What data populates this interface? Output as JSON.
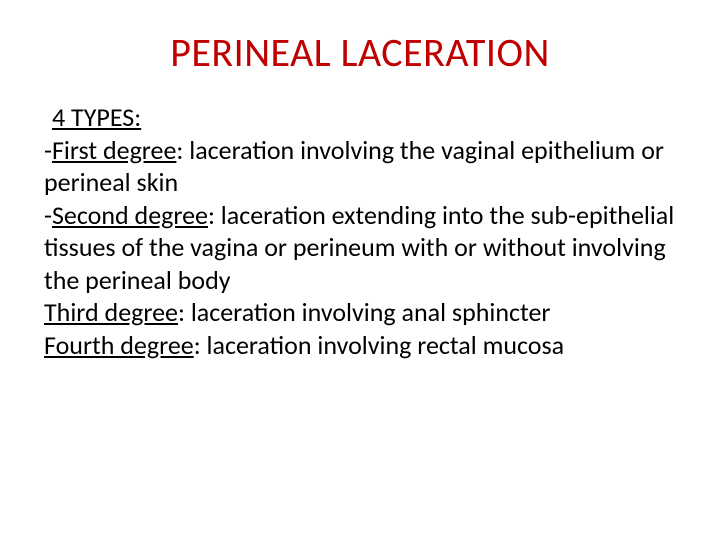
{
  "title": {
    "text": "PERINEAL LACERATION",
    "color": "#c00000",
    "fontsize": 40
  },
  "body": {
    "color": "#000000",
    "fontsize": 26,
    "heading": "4 TYPES:",
    "lines": [
      {
        "prefix": "-",
        "label": "First degree",
        "desc": ": laceration involving the vaginal epithelium or perineal skin"
      },
      {
        "prefix": " -",
        "label": "Second degree",
        "desc": ": laceration extending into the sub-epithelial tissues of the vagina or perineum with or without involving the perineal body"
      },
      {
        "prefix": " ",
        "label": "Third degree",
        "desc": ":  laceration involving anal sphincter"
      },
      {
        "prefix": "",
        "label": "Fourth degree",
        "desc": ": laceration involving rectal mucosa"
      }
    ]
  }
}
